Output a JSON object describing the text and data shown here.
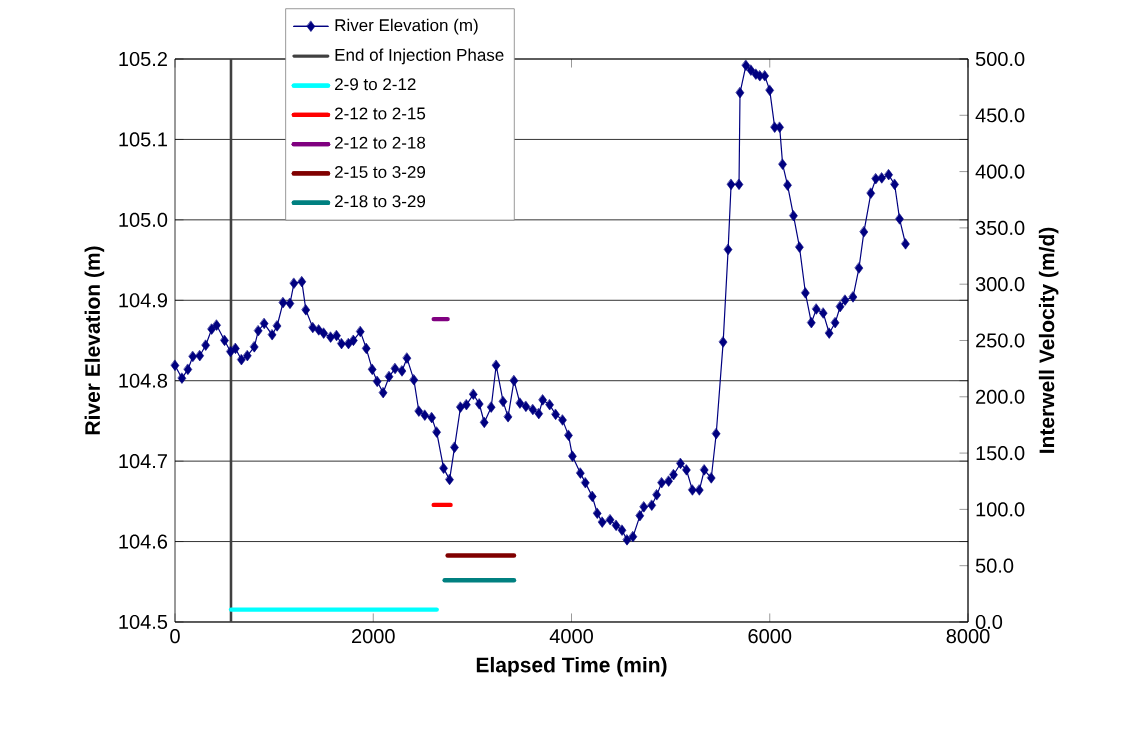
{
  "chart_data": {
    "type": "line",
    "xlabel": "Elapsed Time (min)",
    "ylabel": "River Elevation (m)",
    "y2label": "Interwell Velocity (m/d)",
    "xlim": [
      0,
      8000
    ],
    "xticks": [
      0,
      2000,
      4000,
      6000,
      8000
    ],
    "ylim": [
      104.5,
      105.2
    ],
    "yticks": [
      104.5,
      104.6,
      104.7,
      104.8,
      104.9,
      {
        "value": 105.0,
        "label": "105.0"
      },
      105.1,
      105.2
    ],
    "y2lim": [
      0,
      500
    ],
    "y2ticks": [
      {
        "value": 0,
        "label": "0.0"
      },
      {
        "value": 50,
        "label": "50.0"
      },
      {
        "value": 100,
        "label": "100.0"
      },
      {
        "value": 150,
        "label": "150.0"
      },
      {
        "value": 200,
        "label": "200.0"
      },
      {
        "value": 250,
        "label": "250.0"
      },
      {
        "value": 300,
        "label": "300.0"
      },
      {
        "value": 350,
        "label": "350.0"
      },
      {
        "value": 400,
        "label": "400.0"
      },
      {
        "value": 450,
        "label": "450.0"
      },
      {
        "value": 500,
        "label": "500.0"
      }
    ],
    "grid": "y",
    "legend": "top",
    "series": [
      {
        "name": "River Elevation (m)",
        "color": "#000080",
        "marker": "diamond",
        "x": [
          0,
          70,
          130,
          180,
          250,
          310,
          370,
          420,
          500,
          560,
          610,
          670,
          730,
          800,
          840,
          900,
          980,
          1030,
          1090,
          1160,
          1200,
          1280,
          1320,
          1390,
          1450,
          1500,
          1570,
          1630,
          1680,
          1750,
          1800,
          1870,
          1930,
          1990,
          2040,
          2100,
          2160,
          2220,
          2290,
          2340,
          2410,
          2460,
          2520,
          2590,
          2640,
          2710,
          2770,
          2820,
          2880,
          2940,
          3010,
          3070,
          3120,
          3190,
          3240,
          3310,
          3360,
          3420,
          3480,
          3540,
          3610,
          3670,
          3710,
          3780,
          3840,
          3910,
          3970,
          4010,
          4090,
          4140,
          4210,
          4260,
          4310,
          4390,
          4450,
          4510,
          4560,
          4620,
          4690,
          4730,
          4810,
          4860,
          4910,
          4980,
          5030,
          5100,
          5160,
          5220,
          5290,
          5340,
          5410,
          5460,
          5530,
          5580,
          5610,
          5690,
          5700,
          5760,
          5810,
          5860,
          5900,
          5950,
          6000,
          6050,
          6100,
          6130,
          6180,
          6240,
          6300,
          6360,
          6420,
          6470,
          6540,
          6600,
          6660,
          6710,
          6760,
          6840,
          6900,
          6950,
          7020,
          7070,
          7130,
          7200,
          7260,
          7310,
          7370
        ],
        "values": [
          104.819,
          104.803,
          104.814,
          104.83,
          104.831,
          104.844,
          104.864,
          104.869,
          104.85,
          104.836,
          104.84,
          104.826,
          104.831,
          104.842,
          104.862,
          104.871,
          104.857,
          104.868,
          104.897,
          104.896,
          104.921,
          104.923,
          104.888,
          104.866,
          104.863,
          104.859,
          104.854,
          104.856,
          104.846,
          104.846,
          104.85,
          104.861,
          104.84,
          104.814,
          104.799,
          104.785,
          104.805,
          104.815,
          104.812,
          104.828,
          104.801,
          104.762,
          104.757,
          104.754,
          104.736,
          104.691,
          104.677,
          104.717,
          104.767,
          104.77,
          104.783,
          104.771,
          104.748,
          104.767,
          104.819,
          104.774,
          104.755,
          104.8,
          104.772,
          104.768,
          104.764,
          104.759,
          104.776,
          104.77,
          104.758,
          104.751,
          104.732,
          104.706,
          104.685,
          104.673,
          104.656,
          104.635,
          104.624,
          104.627,
          104.62,
          104.614,
          104.602,
          104.606,
          104.632,
          104.643,
          104.645,
          104.658,
          104.673,
          104.675,
          104.683,
          104.697,
          104.689,
          104.664,
          104.664,
          104.689,
          104.679,
          104.734,
          104.848,
          104.963,
          105.044,
          105.044,
          105.158,
          105.192,
          105.186,
          105.181,
          105.179,
          105.179,
          105.161,
          105.115,
          105.115,
          105.069,
          105.043,
          105.005,
          104.966,
          104.909,
          104.872,
          104.889,
          104.884,
          104.859,
          104.872,
          104.892,
          104.9,
          104.904,
          104.94,
          104.985,
          105.033,
          105.051,
          105.052,
          105.056,
          105.044,
          105.001,
          104.97
        ]
      },
      {
        "name": "End of Injection Phase",
        "color": "#404040",
        "marker": "none",
        "x": [
          565,
          565
        ],
        "values": [
          104.5,
          105.2
        ]
      },
      {
        "name": "2-9 to 2-12",
        "color": "#00ffff",
        "marker": "none",
        "axis": "y2",
        "x": [
          565,
          2640
        ],
        "values": [
          11,
          11
        ]
      },
      {
        "name": "2-12 to 2-15",
        "color": "#ff0000",
        "marker": "none",
        "axis": "y2",
        "x": [
          2610,
          2780
        ],
        "values": [
          104,
          104
        ]
      },
      {
        "name": "2-12 to 2-18",
        "color": "#800080",
        "marker": "none",
        "axis": "y2",
        "x": [
          2610,
          2750
        ],
        "values": [
          269,
          269
        ]
      },
      {
        "name": "2-15 to 3-29",
        "color": "#800000",
        "marker": "none",
        "axis": "y2",
        "x": [
          2750,
          3420
        ],
        "values": [
          59,
          59
        ]
      },
      {
        "name": "2-18 to 3-29",
        "color": "#008080",
        "marker": "none",
        "axis": "y2",
        "x": [
          2720,
          3420
        ],
        "values": [
          37,
          37
        ]
      }
    ]
  }
}
